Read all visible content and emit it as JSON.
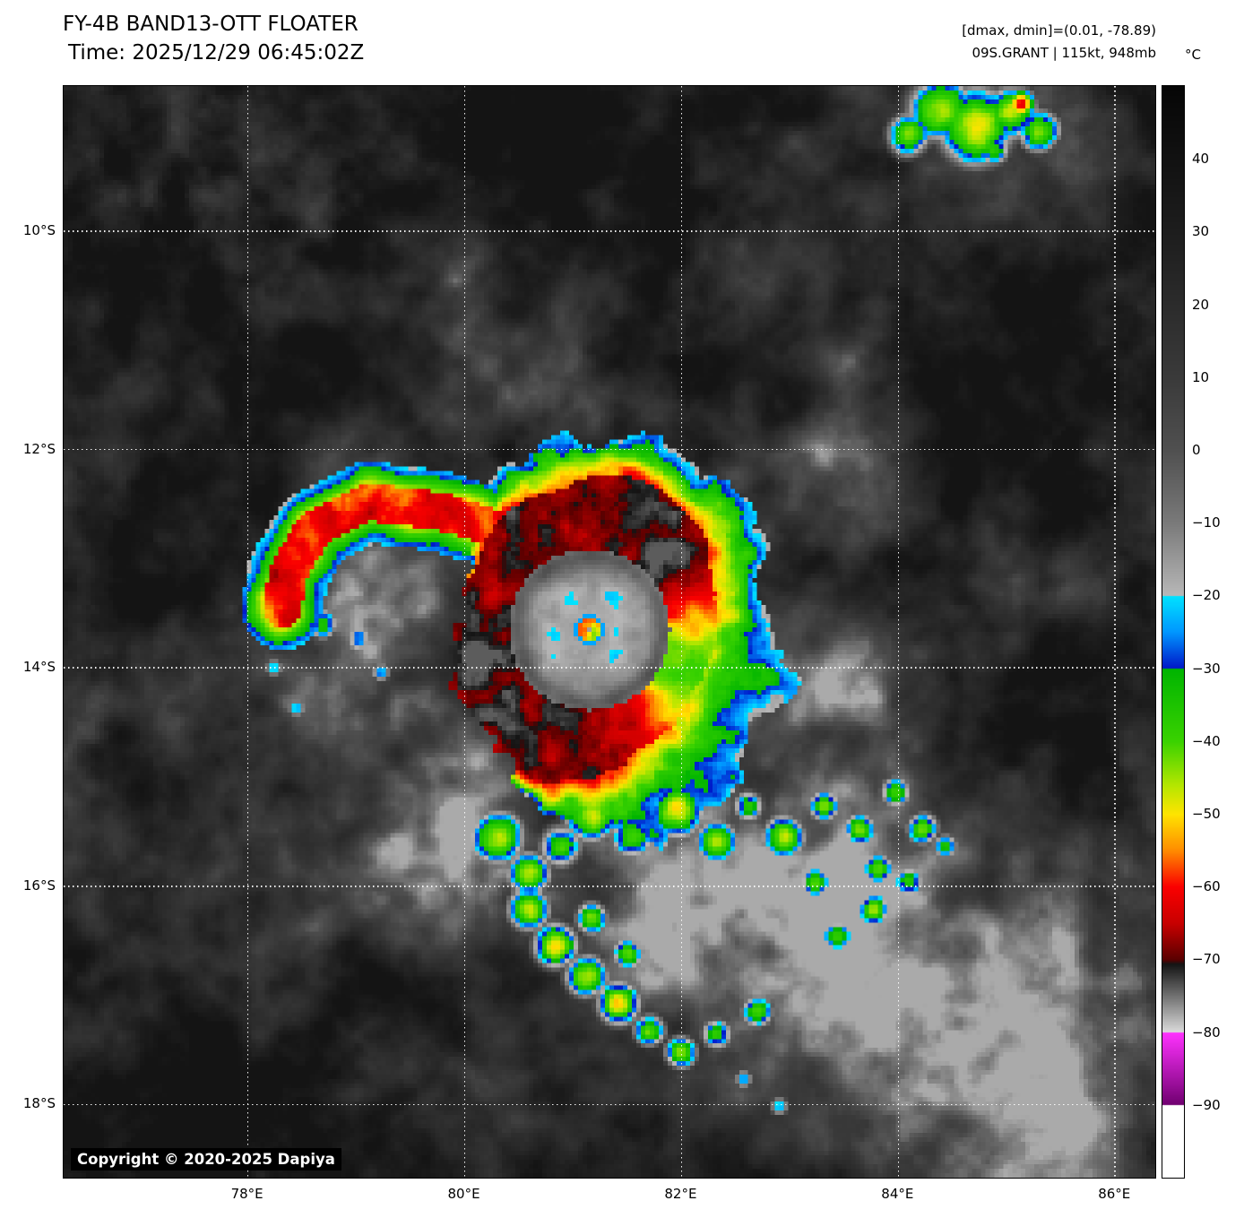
{
  "header": {
    "title": "FY-4B BAND13-OTT FLOATER",
    "time": "Time: 2025/12/29 06:45:02Z",
    "dmax_dmin": "[dmax, dmin]=(0.01, -78.89)",
    "storm_info": "09S.GRANT | 115kt, 948mb"
  },
  "colorbar": {
    "unit_label": "°C",
    "value_max": 50,
    "value_min": -100,
    "ticks": [
      {
        "value": 40,
        "label": "40"
      },
      {
        "value": 30,
        "label": "30"
      },
      {
        "value": 20,
        "label": "20"
      },
      {
        "value": 10,
        "label": "10"
      },
      {
        "value": 0,
        "label": "0"
      },
      {
        "value": -10,
        "label": "−10"
      },
      {
        "value": -20,
        "label": "−20"
      },
      {
        "value": -30,
        "label": "−30"
      },
      {
        "value": -40,
        "label": "−40"
      },
      {
        "value": -50,
        "label": "−50"
      },
      {
        "value": -60,
        "label": "−60"
      },
      {
        "value": -70,
        "label": "−70"
      },
      {
        "value": -80,
        "label": "−80"
      },
      {
        "value": -90,
        "label": "−90"
      }
    ],
    "stops": [
      {
        "v": 50,
        "c": "#060606"
      },
      {
        "v": 30,
        "c": "#1d1d1d"
      },
      {
        "v": 10,
        "c": "#3a3a3a"
      },
      {
        "v": 0,
        "c": "#505050"
      },
      {
        "v": -10,
        "c": "#7a7a7a"
      },
      {
        "v": -20,
        "c": "#b8b8b8"
      },
      {
        "v": -20.001,
        "c": "#00e4ff"
      },
      {
        "v": -25,
        "c": "#0096ff"
      },
      {
        "v": -30,
        "c": "#0016c8"
      },
      {
        "v": -30.001,
        "c": "#00b400"
      },
      {
        "v": -40,
        "c": "#3ad200"
      },
      {
        "v": -46,
        "c": "#b4e600"
      },
      {
        "v": -50,
        "c": "#ffe400"
      },
      {
        "v": -55,
        "c": "#ff8c00"
      },
      {
        "v": -60,
        "c": "#fa0000"
      },
      {
        "v": -65,
        "c": "#c80000"
      },
      {
        "v": -70,
        "c": "#5a0000"
      },
      {
        "v": -70.6,
        "c": "#141414"
      },
      {
        "v": -80,
        "c": "#dcdcdc"
      },
      {
        "v": -80.001,
        "c": "#ff32ff"
      },
      {
        "v": -90,
        "c": "#700070"
      },
      {
        "v": -90.001,
        "c": "#ffffff"
      },
      {
        "v": -100,
        "c": "#ffffff"
      }
    ]
  },
  "map": {
    "copyright": "Copyright © 2020-2025 Dapiya",
    "extent": {
      "lon_min": 76.3,
      "lon_max": 86.37,
      "lat_min": -18.67,
      "lat_max": -8.67
    },
    "lon_ticks": [
      {
        "value": 78,
        "label": "78°E"
      },
      {
        "value": 80,
        "label": "80°E"
      },
      {
        "value": 82,
        "label": "82°E"
      },
      {
        "value": 84,
        "label": "84°E"
      },
      {
        "value": 86,
        "label": "86°E"
      }
    ],
    "lat_ticks": [
      {
        "value": -10,
        "label": "10°S"
      },
      {
        "value": -12,
        "label": "12°S"
      },
      {
        "value": -14,
        "label": "14°S"
      },
      {
        "value": -16,
        "label": "16°S"
      },
      {
        "value": -18,
        "label": "18°S"
      }
    ]
  },
  "storm": {
    "name": "09S.GRANT",
    "center_lon": 81.15,
    "center_lat": -13.65
  }
}
